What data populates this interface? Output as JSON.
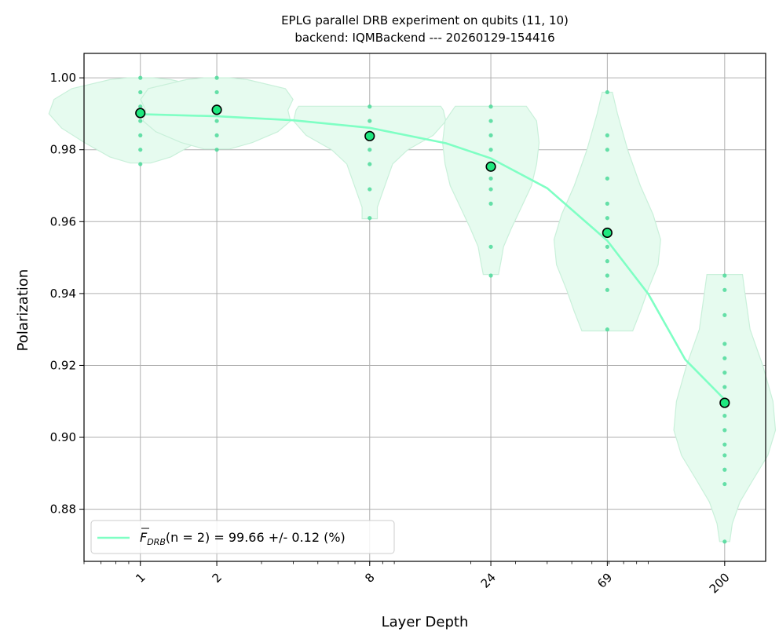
{
  "chart_data": {
    "type": "scatter",
    "title_line1": "EPLG parallel DRB experiment on qubits (11, 10)",
    "title_line2": "backend: IQMBackend --- 20260129-154416",
    "xlabel": "Layer Depth",
    "ylabel": "Polarization",
    "x_scale": "log",
    "xlim": [
      0.6,
      290
    ],
    "ylim": [
      0.8655,
      1.0068
    ],
    "x_ticks": [
      1,
      2,
      8,
      24,
      69,
      200
    ],
    "x_tick_labels": [
      "1",
      "2",
      "8",
      "24",
      "69",
      "200"
    ],
    "y_ticks": [
      0.88,
      0.9,
      0.92,
      0.94,
      0.96,
      0.98,
      1.0
    ],
    "y_tick_labels": [
      "0.88",
      "0.90",
      "0.92",
      "0.94",
      "0.96",
      "0.98",
      "1.00"
    ],
    "grid": true,
    "colors": {
      "fit": "#7fffc4",
      "mean_point": "#1ee87f",
      "sample": "#4cd99a",
      "violin_fill": "#e6fbef",
      "violin_edge": "#c9f0da"
    },
    "mean_points": {
      "x": [
        1,
        2,
        8,
        24,
        69,
        200
      ],
      "y": [
        0.9902,
        0.9911,
        0.9838,
        0.9753,
        0.9569,
        0.9096
      ]
    },
    "samples": [
      {
        "x": 1,
        "y": [
          1.0,
          0.996,
          0.992,
          0.988,
          0.984,
          0.98,
          0.976
        ]
      },
      {
        "x": 2,
        "y": [
          1.0,
          0.996,
          0.992,
          0.988,
          0.984,
          0.98
        ]
      },
      {
        "x": 8,
        "y": [
          0.992,
          0.988,
          0.984,
          0.98,
          0.976,
          0.969,
          0.961
        ]
      },
      {
        "x": 24,
        "y": [
          0.992,
          0.988,
          0.984,
          0.98,
          0.976,
          0.972,
          0.969,
          0.965,
          0.953,
          0.945
        ]
      },
      {
        "x": 69,
        "y": [
          0.996,
          0.984,
          0.98,
          0.972,
          0.965,
          0.961,
          0.957,
          0.953,
          0.949,
          0.945,
          0.941,
          0.93
        ]
      },
      {
        "x": 200,
        "y": [
          0.945,
          0.941,
          0.934,
          0.926,
          0.922,
          0.918,
          0.914,
          0.91,
          0.906,
          0.902,
          0.898,
          0.895,
          0.891,
          0.887,
          0.871
        ]
      }
    ],
    "violins": [
      {
        "x": 1,
        "profile": [
          [
            0.9763,
            0.04
          ],
          [
            0.978,
            0.12
          ],
          [
            0.982,
            0.22
          ],
          [
            0.986,
            0.31
          ],
          [
            0.99,
            0.36
          ],
          [
            0.994,
            0.34
          ],
          [
            0.997,
            0.27
          ],
          [
            0.9995,
            0.12
          ],
          [
            1.0,
            0.05
          ]
        ]
      },
      {
        "x": 2,
        "profile": [
          [
            0.9802,
            0.05
          ],
          [
            0.982,
            0.14
          ],
          [
            0.985,
            0.24
          ],
          [
            0.988,
            0.29
          ],
          [
            0.991,
            0.28
          ],
          [
            0.994,
            0.3
          ],
          [
            0.997,
            0.27
          ],
          [
            0.9995,
            0.12
          ],
          [
            1.0,
            0.05
          ]
        ]
      },
      {
        "x": 8,
        "profile": [
          [
            0.9608,
            0.03
          ],
          [
            0.964,
            0.03
          ],
          [
            0.968,
            0.05
          ],
          [
            0.972,
            0.07
          ],
          [
            0.976,
            0.09
          ],
          [
            0.98,
            0.15
          ],
          [
            0.984,
            0.25
          ],
          [
            0.988,
            0.3
          ],
          [
            0.991,
            0.29
          ],
          [
            0.9921,
            0.28
          ]
        ]
      },
      {
        "x": 24,
        "profile": [
          [
            0.9453,
            0.03
          ],
          [
            0.949,
            0.04
          ],
          [
            0.953,
            0.05
          ],
          [
            0.958,
            0.08
          ],
          [
            0.964,
            0.12
          ],
          [
            0.97,
            0.16
          ],
          [
            0.976,
            0.18
          ],
          [
            0.982,
            0.19
          ],
          [
            0.988,
            0.18
          ],
          [
            0.9921,
            0.14
          ]
        ]
      },
      {
        "x": 69,
        "profile": [
          [
            0.9296,
            0.1
          ],
          [
            0.935,
            0.13
          ],
          [
            0.941,
            0.16
          ],
          [
            0.948,
            0.2
          ],
          [
            0.955,
            0.21
          ],
          [
            0.962,
            0.18
          ],
          [
            0.97,
            0.13
          ],
          [
            0.98,
            0.08
          ],
          [
            0.99,
            0.04
          ],
          [
            0.996,
            0.02
          ]
        ]
      },
      {
        "x": 200,
        "profile": [
          [
            0.871,
            0.02
          ],
          [
            0.876,
            0.03
          ],
          [
            0.882,
            0.06
          ],
          [
            0.888,
            0.11
          ],
          [
            0.895,
            0.17
          ],
          [
            0.902,
            0.2
          ],
          [
            0.91,
            0.19
          ],
          [
            0.92,
            0.15
          ],
          [
            0.93,
            0.1
          ],
          [
            0.94,
            0.08
          ],
          [
            0.9453,
            0.07
          ]
        ]
      }
    ],
    "fit": {
      "label": "$\\overline{F}_{DRB}(n=2)$ = 99.66 +/- 0.12 (%)",
      "legend_prefix": "F",
      "legend_sub": "DRB",
      "legend_n": "(n = 2)",
      "legend_value": " = 99.66 +/- 0.12 (%)",
      "legend_position": "lower left",
      "curve": [
        [
          1,
          0.9899
        ],
        [
          2,
          0.9893
        ],
        [
          4,
          0.9882
        ],
        [
          8,
          0.9861
        ],
        [
          16,
          0.9818
        ],
        [
          24,
          0.9776
        ],
        [
          40,
          0.9693
        ],
        [
          69,
          0.9547
        ],
        [
          100,
          0.9399
        ],
        [
          140,
          0.9216
        ],
        [
          200,
          0.9105
        ]
      ]
    }
  }
}
